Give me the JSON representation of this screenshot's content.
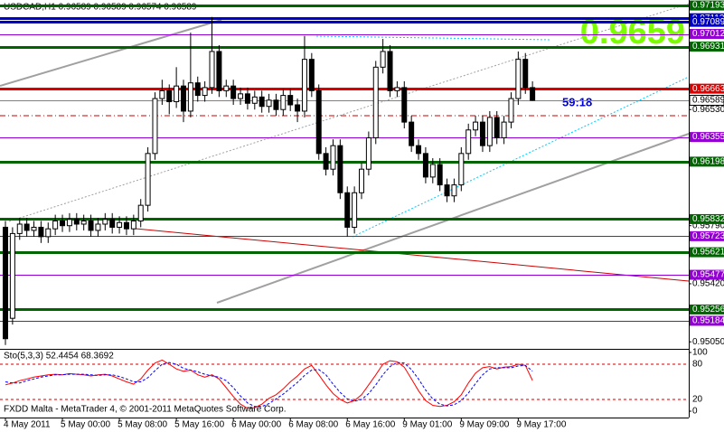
{
  "chart_data": [
    {
      "type": "candlestick",
      "title": "USDCAD,H1  0.96589 0.96589 0.96574 0.96589",
      "price_display": "0.9659",
      "timer": "59:18",
      "categories": [
        "4 May 2011",
        null,
        null,
        null,
        null,
        null,
        null,
        null,
        "5 May 00:00",
        null,
        null,
        null,
        null,
        null,
        null,
        null,
        "5 May 08:00",
        null,
        null,
        null,
        null,
        null,
        null,
        null,
        "5 May 16:00",
        null,
        null,
        null,
        null,
        null,
        null,
        null,
        "6 May 00:00",
        null,
        null,
        null,
        null,
        null,
        null,
        null,
        "6 May 08:00",
        null,
        null,
        null,
        null,
        null,
        null,
        null,
        "6 May 16:00",
        null,
        null,
        null,
        null,
        null,
        null,
        null,
        "9 May 01:00",
        null,
        null,
        null,
        null,
        null,
        null,
        null,
        "9 May 09:00",
        null,
        null,
        null,
        null,
        null,
        null,
        null,
        "9 May 17:00",
        null,
        null
      ],
      "open": [
        0.9578,
        0.952,
        0.9574,
        0.958,
        0.9576,
        0.9578,
        0.9572,
        0.9577,
        0.9582,
        0.9579,
        0.9583,
        0.958,
        0.9582,
        0.9576,
        0.958,
        0.9583,
        0.9578,
        0.9581,
        0.9577,
        0.9582,
        0.9592,
        0.9625,
        0.966,
        0.9665,
        0.9658,
        0.9668,
        0.9652,
        0.967,
        0.9662,
        0.9667,
        0.969,
        0.9665,
        0.9668,
        0.966,
        0.9663,
        0.9657,
        0.9661,
        0.9655,
        0.9659,
        0.9653,
        0.9662,
        0.9656,
        0.9652,
        0.9685,
        0.9665,
        0.9625,
        0.9615,
        0.963,
        0.96,
        0.9578,
        0.96,
        0.9615,
        0.9635,
        0.968,
        0.969,
        0.9665,
        0.9667,
        0.9645,
        0.963,
        0.9625,
        0.961,
        0.9618,
        0.9605,
        0.9598,
        0.9605,
        0.9625,
        0.964,
        0.9645,
        0.963,
        0.9648,
        0.9635,
        0.9645,
        0.966,
        0.9685,
        0.9667
      ],
      "high": [
        0.9582,
        0.9578,
        0.9584,
        0.9584,
        0.9582,
        0.9582,
        0.9581,
        0.9586,
        0.9586,
        0.9587,
        0.9587,
        0.9586,
        0.9586,
        0.9584,
        0.9587,
        0.9587,
        0.9585,
        0.9585,
        0.9586,
        0.9596,
        0.9629,
        0.9664,
        0.9672,
        0.9669,
        0.968,
        0.9672,
        0.9702,
        0.9674,
        0.9671,
        0.9712,
        0.9694,
        0.9672,
        0.9672,
        0.9667,
        0.9667,
        0.9665,
        0.9665,
        0.9663,
        0.9663,
        0.9666,
        0.9666,
        0.966,
        0.97,
        0.9689,
        0.9669,
        0.9629,
        0.9634,
        0.9634,
        0.9604,
        0.9604,
        0.9619,
        0.9639,
        0.9684,
        0.9698,
        0.9694,
        0.9671,
        0.9671,
        0.9649,
        0.9634,
        0.9629,
        0.9622,
        0.9622,
        0.9609,
        0.9609,
        0.9629,
        0.9644,
        0.9649,
        0.9649,
        0.9652,
        0.9652,
        0.9649,
        0.9664,
        0.969,
        0.9689,
        0.9671
      ],
      "low": [
        0.9503,
        0.9516,
        0.957,
        0.9572,
        0.9572,
        0.9568,
        0.9568,
        0.9573,
        0.9575,
        0.9575,
        0.9576,
        0.9576,
        0.9572,
        0.9572,
        0.9576,
        0.9574,
        0.9574,
        0.9573,
        0.9573,
        0.9578,
        0.9588,
        0.9621,
        0.9656,
        0.965,
        0.9654,
        0.9645,
        0.9648,
        0.9658,
        0.9658,
        0.9663,
        0.9661,
        0.9661,
        0.9656,
        0.9656,
        0.9653,
        0.9653,
        0.9651,
        0.9651,
        0.9649,
        0.9649,
        0.9652,
        0.9645,
        0.9648,
        0.9661,
        0.9621,
        0.9611,
        0.9611,
        0.9596,
        0.9572,
        0.9574,
        0.9596,
        0.9611,
        0.9631,
        0.9676,
        0.9661,
        0.9661,
        0.9641,
        0.9626,
        0.9621,
        0.9606,
        0.9606,
        0.9601,
        0.9594,
        0.9594,
        0.9601,
        0.9621,
        0.9636,
        0.9626,
        0.9626,
        0.9631,
        0.9631,
        0.9641,
        0.9656,
        0.9663,
        0.96585
      ],
      "close": [
        0.9507,
        0.9574,
        0.958,
        0.9576,
        0.9578,
        0.9572,
        0.9577,
        0.9582,
        0.9579,
        0.9583,
        0.958,
        0.9582,
        0.9576,
        0.958,
        0.9583,
        0.9578,
        0.9581,
        0.9577,
        0.9582,
        0.9592,
        0.9625,
        0.966,
        0.9665,
        0.9658,
        0.9668,
        0.9652,
        0.967,
        0.9662,
        0.9667,
        0.969,
        0.9665,
        0.9668,
        0.966,
        0.9663,
        0.9657,
        0.9661,
        0.9655,
        0.9659,
        0.9653,
        0.9662,
        0.9656,
        0.9652,
        0.9685,
        0.9665,
        0.9625,
        0.9615,
        0.963,
        0.96,
        0.9578,
        0.96,
        0.9615,
        0.9635,
        0.968,
        0.969,
        0.9665,
        0.9667,
        0.9645,
        0.963,
        0.9625,
        0.961,
        0.9618,
        0.9605,
        0.9598,
        0.9605,
        0.9625,
        0.964,
        0.9645,
        0.963,
        0.9648,
        0.9635,
        0.9645,
        0.966,
        0.9685,
        0.9667,
        0.96589
      ],
      "up_color": "#ffffff",
      "down_color": "#000000",
      "wick_color": "#000000",
      "ylim": [
        0.95011,
        0.97228
      ],
      "yticks": [
        {
          "value": 0.9653,
          "label": "0.96530"
        },
        {
          "value": 0.9579,
          "label": "0.95790"
        },
        {
          "value": 0.9542,
          "label": "0.95420"
        },
        {
          "value": 0.9505,
          "label": "0.95050"
        }
      ],
      "levels": [
        {
          "value": 0.97193,
          "color": "#006400",
          "style": "thick"
        },
        {
          "value": 0.97112,
          "color": "#0000cd",
          "style": "thick"
        },
        {
          "value": 0.97089,
          "color": "#0000cd",
          "style": "thick"
        },
        {
          "value": 0.97012,
          "color": "#9400d3",
          "style": "thin"
        },
        {
          "value": 0.96931,
          "color": "#006400",
          "style": "thick"
        },
        {
          "value": 0.96663,
          "color": "#dd0000",
          "style": "thick"
        },
        {
          "value": 0.96589,
          "color": "#808080",
          "style": "current"
        },
        {
          "value": 0.96355,
          "color": "#9400d3",
          "style": "thin"
        },
        {
          "value": 0.96198,
          "color": "#006400",
          "style": "thick"
        },
        {
          "value": 0.95832,
          "color": "#006400",
          "style": "thick"
        },
        {
          "value": 0.95723,
          "color": "#9400d3",
          "style": "thin"
        },
        {
          "value": 0.95621,
          "color": "#006400",
          "style": "thick"
        },
        {
          "value": 0.95477,
          "color": "#9400d3",
          "style": "thin"
        },
        {
          "value": 0.95256,
          "color": "#006400",
          "style": "thick"
        },
        {
          "value": 0.95184,
          "color": "#9400d3",
          "style": "thin"
        }
      ]
    },
    {
      "type": "stochastic",
      "title": "Sto(5,3,3) 52.4454 68.3692",
      "series": [
        {
          "color": "#ff0000",
          "dash": false,
          "values": [
            45,
            48,
            52,
            55,
            58,
            60,
            62,
            63,
            62,
            64,
            63,
            62,
            60,
            62,
            63,
            60,
            55,
            50,
            46,
            55,
            70,
            82,
            87,
            80,
            72,
            68,
            70,
            62,
            58,
            62,
            55,
            40,
            25,
            12,
            5,
            6,
            12,
            22,
            28,
            38,
            50,
            60,
            72,
            78,
            62,
            45,
            30,
            20,
            14,
            18,
            28,
            45,
            62,
            80,
            86,
            84,
            75,
            55,
            35,
            18,
            10,
            8,
            10,
            16,
            28,
            48,
            65,
            74,
            76,
            72,
            75,
            76,
            80,
            78,
            52.4454
          ]
        },
        {
          "color": "#0000ff",
          "dash": true,
          "values": [
            50,
            48,
            48,
            52,
            55,
            58,
            60,
            62,
            62,
            63,
            63,
            63,
            62,
            61,
            62,
            62,
            59,
            55,
            50,
            50,
            57,
            69,
            80,
            83,
            80,
            73,
            70,
            67,
            63,
            60,
            58,
            52,
            40,
            26,
            14,
            8,
            8,
            13,
            21,
            29,
            39,
            49,
            61,
            70,
            71,
            62,
            46,
            32,
            21,
            17,
            20,
            30,
            45,
            62,
            76,
            83,
            82,
            71,
            55,
            36,
            21,
            12,
            9,
            11,
            18,
            31,
            47,
            62,
            72,
            74,
            74,
            74,
            77,
            78,
            68.3692
          ]
        }
      ],
      "ylim": [
        0,
        100
      ],
      "yticks": [
        0,
        20,
        80,
        100
      ]
    }
  ],
  "footer": "FXDD Malta - MetaTrader 4, © 2001-2011 MetaQuotes Software Corp."
}
